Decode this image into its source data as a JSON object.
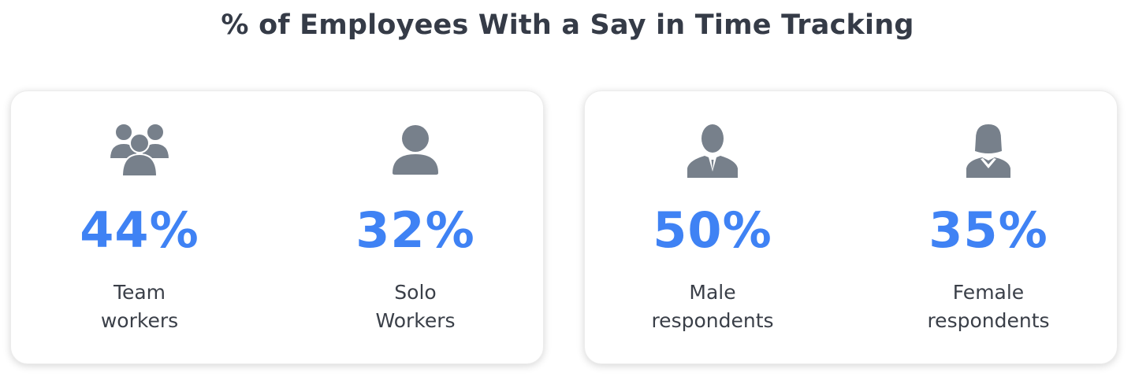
{
  "title": "% of Employees With a Say in Time Tracking",
  "colors": {
    "accent": "#3f82f4",
    "icon": "#77808b",
    "title": "#353b47"
  },
  "cards": [
    {
      "stats": [
        {
          "icon": "group-icon",
          "percent": "44%",
          "label_line1": "Team",
          "label_line2": "workers"
        },
        {
          "icon": "person-icon",
          "percent": "32%",
          "label_line1": "Solo",
          "label_line2": "Workers"
        }
      ]
    },
    {
      "stats": [
        {
          "icon": "businessman-icon",
          "percent": "50%",
          "label_line1": "Male",
          "label_line2": "respondents"
        },
        {
          "icon": "businesswoman-icon",
          "percent": "35%",
          "label_line1": "Female",
          "label_line2": "respondents"
        }
      ]
    }
  ]
}
